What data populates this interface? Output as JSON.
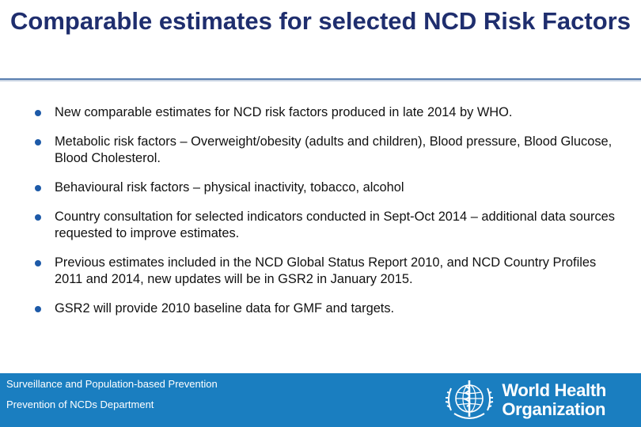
{
  "slide": {
    "title": "Comparable estimates for selected NCD Risk Factors",
    "bullets": [
      "New comparable estimates for NCD risk factors produced in late 2014 by WHO.",
      "Metabolic risk factors – Overweight/obesity (adults and children), Blood pressure, Blood Glucose, Blood Cholesterol.",
      "Behavioural risk factors – physical inactivity, tobacco, alcohol",
      "Country consultation for selected indicators conducted in Sept-Oct 2014 – additional data sources requested to improve estimates.",
      "Previous estimates included in the NCD Global Status Report 2010, and NCD Country Profiles 2011 and 2014, new updates will be in GSR2 in January 2015.",
      "GSR2 will provide 2010 baseline data for GMF and targets."
    ]
  },
  "footer": {
    "line1": "Surveillance and Population-based Prevention",
    "line2": "Prevention of NCDs Department",
    "logo": {
      "icon": "who-emblem-icon",
      "word1": "World Health",
      "word2": "Organization"
    }
  },
  "colors": {
    "title": "#1f2e6e",
    "bullet": "#1d5aa8",
    "footer_bg": "#1a7ec0",
    "rule": "#5a7fb0"
  }
}
